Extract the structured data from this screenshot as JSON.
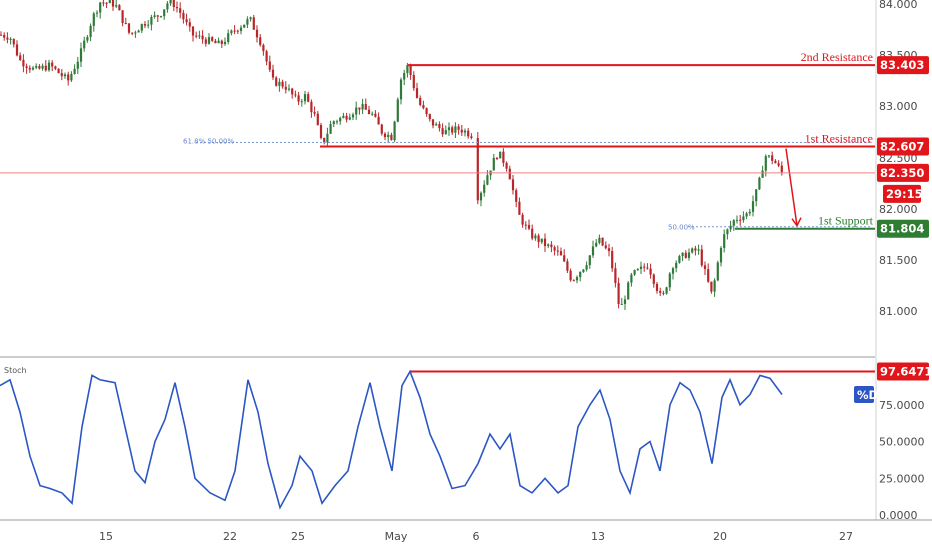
{
  "colors": {
    "resistance": "#e0161b",
    "support": "#2e7d32",
    "price_line": "#f08080",
    "timer_bg": "#e0161b",
    "stoch_line": "#2b56c4",
    "d_tag": "#2b56c4",
    "candle_up": "#2f7a3a",
    "candle_down": "#b9262a"
  },
  "annotations": {
    "second_resistance": "2nd Resistance",
    "first_resistance": "1st Resistance",
    "first_support": "1st Support",
    "fib_618_50": "61.8% 50.00%",
    "fib_50": "50.00%",
    "stoch_title": "Stoch",
    "d_label": "%D"
  },
  "tags": {
    "second_resistance": "83.403",
    "first_resistance": "82.607",
    "current_price": "82.350",
    "timer": "29:15",
    "first_support": "81.804",
    "stoch_value": "97.6471"
  },
  "chart_data": [
    {
      "type": "candlestick",
      "title": "",
      "x_ticks": [
        "15",
        "22",
        "25",
        "May",
        "6",
        "13",
        "20",
        "27"
      ],
      "y_ticks": [
        "84.000",
        "83.500",
        "83.000",
        "82.500",
        "82.000",
        "81.500",
        "81.000"
      ],
      "ylim": [
        80.75,
        84.05
      ],
      "levels": [
        {
          "name": "2nd Resistance",
          "value": 83.403
        },
        {
          "name": "1st Resistance",
          "value": 82.607
        },
        {
          "name": "Current price",
          "value": 82.35
        },
        {
          "name": "1st Support",
          "value": 81.804
        }
      ],
      "close_path": [
        {
          "x": 0,
          "y": 83.7
        },
        {
          "x": 10,
          "y": 83.68
        },
        {
          "x": 20,
          "y": 83.45
        },
        {
          "x": 35,
          "y": 83.35
        },
        {
          "x": 50,
          "y": 83.4
        },
        {
          "x": 68,
          "y": 83.25
        },
        {
          "x": 80,
          "y": 83.5
        },
        {
          "x": 92,
          "y": 83.85
        },
        {
          "x": 100,
          "y": 84.02
        },
        {
          "x": 115,
          "y": 84.0
        },
        {
          "x": 130,
          "y": 83.7
        },
        {
          "x": 145,
          "y": 83.82
        },
        {
          "x": 160,
          "y": 83.9
        },
        {
          "x": 170,
          "y": 84.05
        },
        {
          "x": 180,
          "y": 83.92
        },
        {
          "x": 192,
          "y": 83.7
        },
        {
          "x": 205,
          "y": 83.65
        },
        {
          "x": 220,
          "y": 83.6
        },
        {
          "x": 235,
          "y": 83.75
        },
        {
          "x": 250,
          "y": 83.85
        },
        {
          "x": 262,
          "y": 83.6
        },
        {
          "x": 272,
          "y": 83.25
        },
        {
          "x": 285,
          "y": 83.2
        },
        {
          "x": 297,
          "y": 83.05
        },
        {
          "x": 305,
          "y": 83.1
        },
        {
          "x": 315,
          "y": 82.9
        },
        {
          "x": 322,
          "y": 82.62
        },
        {
          "x": 332,
          "y": 82.85
        },
        {
          "x": 345,
          "y": 82.9
        },
        {
          "x": 360,
          "y": 83.0
        },
        {
          "x": 372,
          "y": 82.92
        },
        {
          "x": 382,
          "y": 82.75
        },
        {
          "x": 392,
          "y": 82.7
        },
        {
          "x": 400,
          "y": 83.25
        },
        {
          "x": 408,
          "y": 83.4
        },
        {
          "x": 418,
          "y": 83.05
        },
        {
          "x": 430,
          "y": 82.85
        },
        {
          "x": 445,
          "y": 82.75
        },
        {
          "x": 460,
          "y": 82.78
        },
        {
          "x": 472,
          "y": 82.72
        },
        {
          "x": 478,
          "y": 82.1
        },
        {
          "x": 488,
          "y": 82.35
        },
        {
          "x": 498,
          "y": 82.55
        },
        {
          "x": 508,
          "y": 82.4
        },
        {
          "x": 518,
          "y": 81.95
        },
        {
          "x": 530,
          "y": 81.75
        },
        {
          "x": 545,
          "y": 81.65
        },
        {
          "x": 560,
          "y": 81.55
        },
        {
          "x": 572,
          "y": 81.3
        },
        {
          "x": 585,
          "y": 81.45
        },
        {
          "x": 598,
          "y": 81.7
        },
        {
          "x": 610,
          "y": 81.55
        },
        {
          "x": 620,
          "y": 81.0
        },
        {
          "x": 632,
          "y": 81.35
        },
        {
          "x": 648,
          "y": 81.45
        },
        {
          "x": 662,
          "y": 81.1
        },
        {
          "x": 672,
          "y": 81.45
        },
        {
          "x": 685,
          "y": 81.55
        },
        {
          "x": 698,
          "y": 81.6
        },
        {
          "x": 712,
          "y": 81.15
        },
        {
          "x": 722,
          "y": 81.7
        },
        {
          "x": 735,
          "y": 81.9
        },
        {
          "x": 748,
          "y": 81.95
        },
        {
          "x": 758,
          "y": 82.2
        },
        {
          "x": 765,
          "y": 82.52
        },
        {
          "x": 773,
          "y": 82.48
        },
        {
          "x": 782,
          "y": 82.35
        }
      ],
      "projection": {
        "from_value": 82.607,
        "to_value": 81.804
      }
    },
    {
      "type": "line",
      "title": "",
      "series": [
        {
          "name": "%D"
        }
      ],
      "y_ticks": [
        "75.0000",
        "50.0000",
        "25.0000",
        "0.0000"
      ],
      "ylim": [
        0,
        100
      ],
      "levels": [
        {
          "name": "Stoch high",
          "value": 97.6471
        }
      ],
      "points": [
        {
          "x": 0,
          "y": 88
        },
        {
          "x": 10,
          "y": 92
        },
        {
          "x": 20,
          "y": 70
        },
        {
          "x": 30,
          "y": 40
        },
        {
          "x": 40,
          "y": 20
        },
        {
          "x": 50,
          "y": 18
        },
        {
          "x": 62,
          "y": 15
        },
        {
          "x": 72,
          "y": 8
        },
        {
          "x": 82,
          "y": 60
        },
        {
          "x": 92,
          "y": 95
        },
        {
          "x": 100,
          "y": 92
        },
        {
          "x": 115,
          "y": 90
        },
        {
          "x": 125,
          "y": 60
        },
        {
          "x": 135,
          "y": 30
        },
        {
          "x": 145,
          "y": 22
        },
        {
          "x": 155,
          "y": 50
        },
        {
          "x": 165,
          "y": 65
        },
        {
          "x": 175,
          "y": 90
        },
        {
          "x": 185,
          "y": 60
        },
        {
          "x": 195,
          "y": 25
        },
        {
          "x": 210,
          "y": 15
        },
        {
          "x": 225,
          "y": 10
        },
        {
          "x": 235,
          "y": 30
        },
        {
          "x": 248,
          "y": 92
        },
        {
          "x": 258,
          "y": 70
        },
        {
          "x": 268,
          "y": 35
        },
        {
          "x": 280,
          "y": 5
        },
        {
          "x": 292,
          "y": 20
        },
        {
          "x": 300,
          "y": 40
        },
        {
          "x": 312,
          "y": 30
        },
        {
          "x": 322,
          "y": 8
        },
        {
          "x": 335,
          "y": 20
        },
        {
          "x": 348,
          "y": 30
        },
        {
          "x": 358,
          "y": 60
        },
        {
          "x": 370,
          "y": 90
        },
        {
          "x": 380,
          "y": 60
        },
        {
          "x": 392,
          "y": 30
        },
        {
          "x": 402,
          "y": 88
        },
        {
          "x": 410,
          "y": 97.6
        },
        {
          "x": 420,
          "y": 80
        },
        {
          "x": 430,
          "y": 55
        },
        {
          "x": 440,
          "y": 40
        },
        {
          "x": 452,
          "y": 18
        },
        {
          "x": 465,
          "y": 20
        },
        {
          "x": 478,
          "y": 35
        },
        {
          "x": 490,
          "y": 55
        },
        {
          "x": 500,
          "y": 45
        },
        {
          "x": 510,
          "y": 55
        },
        {
          "x": 520,
          "y": 20
        },
        {
          "x": 532,
          "y": 15
        },
        {
          "x": 545,
          "y": 25
        },
        {
          "x": 558,
          "y": 15
        },
        {
          "x": 568,
          "y": 20
        },
        {
          "x": 578,
          "y": 60
        },
        {
          "x": 590,
          "y": 75
        },
        {
          "x": 600,
          "y": 85
        },
        {
          "x": 610,
          "y": 65
        },
        {
          "x": 620,
          "y": 30
        },
        {
          "x": 630,
          "y": 15
        },
        {
          "x": 640,
          "y": 45
        },
        {
          "x": 650,
          "y": 50
        },
        {
          "x": 660,
          "y": 30
        },
        {
          "x": 670,
          "y": 75
        },
        {
          "x": 680,
          "y": 90
        },
        {
          "x": 690,
          "y": 85
        },
        {
          "x": 700,
          "y": 70
        },
        {
          "x": 712,
          "y": 35
        },
        {
          "x": 722,
          "y": 80
        },
        {
          "x": 730,
          "y": 92
        },
        {
          "x": 740,
          "y": 75
        },
        {
          "x": 750,
          "y": 82
        },
        {
          "x": 760,
          "y": 95
        },
        {
          "x": 770,
          "y": 93
        },
        {
          "x": 782,
          "y": 82
        }
      ]
    }
  ]
}
